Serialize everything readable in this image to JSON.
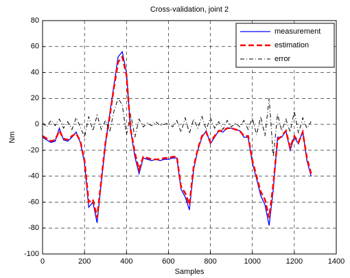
{
  "chart_data": {
    "type": "line",
    "title": "Cross-validation, joint 2",
    "x_label": "Samples",
    "y_label": "Nm",
    "x": [
      0,
      20,
      40,
      60,
      80,
      100,
      120,
      140,
      160,
      180,
      200,
      220,
      240,
      260,
      280,
      300,
      320,
      340,
      360,
      380,
      400,
      420,
      440,
      460,
      480,
      500,
      520,
      540,
      560,
      580,
      600,
      620,
      640,
      660,
      680,
      700,
      720,
      740,
      760,
      780,
      800,
      820,
      840,
      860,
      880,
      900,
      920,
      940,
      960,
      980,
      1000,
      1020,
      1040,
      1060,
      1080,
      1100,
      1120,
      1140,
      1160,
      1180,
      1200,
      1220,
      1240,
      1260,
      1280
    ],
    "series": [
      {
        "name": "measurement",
        "color": "#0000ff",
        "style": "solid",
        "values": [
          -10,
          -12,
          -14,
          -13,
          -3,
          -12,
          -13,
          -10,
          -6,
          -14,
          -30,
          -64,
          -60,
          -76,
          -45,
          -15,
          8,
          30,
          52,
          56,
          40,
          -5,
          -25,
          -38,
          -26,
          -27,
          -28,
          -27,
          -28,
          -27,
          -27,
          -26,
          -26,
          -50,
          -56,
          -66,
          -35,
          -20,
          -10,
          -5,
          -15,
          -10,
          -5,
          -6,
          -3,
          -3,
          -4,
          -5,
          -10,
          -10,
          -30,
          -42,
          -55,
          -62,
          -78,
          -50,
          -10,
          -10,
          -5,
          -20,
          -10,
          -15,
          -5,
          -28,
          -40
        ]
      },
      {
        "name": "estimation",
        "color": "#ff0000",
        "style": "dashed",
        "values": [
          -9,
          -11,
          -13,
          -12,
          -5,
          -11,
          -12,
          -9,
          -7,
          -13,
          -28,
          -60,
          -58,
          -72,
          -43,
          -14,
          6,
          28,
          48,
          52,
          38,
          -4,
          -22,
          -35,
          -25,
          -26,
          -27,
          -27,
          -27,
          -26,
          -26,
          -25,
          -25,
          -48,
          -53,
          -62,
          -33,
          -19,
          -9,
          -6,
          -14,
          -9,
          -5,
          -5,
          -3,
          -3,
          -4,
          -5,
          -9,
          -9,
          -28,
          -40,
          -52,
          -58,
          -72,
          -46,
          -12,
          -9,
          -5,
          -18,
          -9,
          -14,
          -6,
          -26,
          -38
        ]
      },
      {
        "name": "error",
        "color": "#000000",
        "style": "dashdot",
        "values": [
          1,
          -2,
          3,
          -1,
          4,
          -3,
          2,
          -4,
          5,
          -2,
          -10,
          6,
          -5,
          7,
          -4,
          3,
          -6,
          10,
          20,
          15,
          -8,
          8,
          -10,
          4,
          -2,
          1,
          -1,
          2,
          -1,
          0,
          1,
          -2,
          3,
          -6,
          5,
          -7,
          4,
          -3,
          6,
          -4,
          5,
          -3,
          2,
          -4,
          3,
          -2,
          1,
          -2,
          3,
          -4,
          5,
          -8,
          6,
          -9,
          20,
          -25,
          8,
          -5,
          4,
          -6,
          10,
          -7,
          5,
          -3,
          2
        ]
      }
    ],
    "xlim": [
      0,
      1400
    ],
    "xticks": [
      0,
      200,
      400,
      600,
      800,
      1000,
      1200,
      1400
    ],
    "ylim": [
      -100,
      80
    ],
    "yticks": [
      -100,
      -80,
      -60,
      -40,
      -20,
      0,
      20,
      40,
      60,
      80
    ],
    "grid": true,
    "legend": "upper right"
  }
}
